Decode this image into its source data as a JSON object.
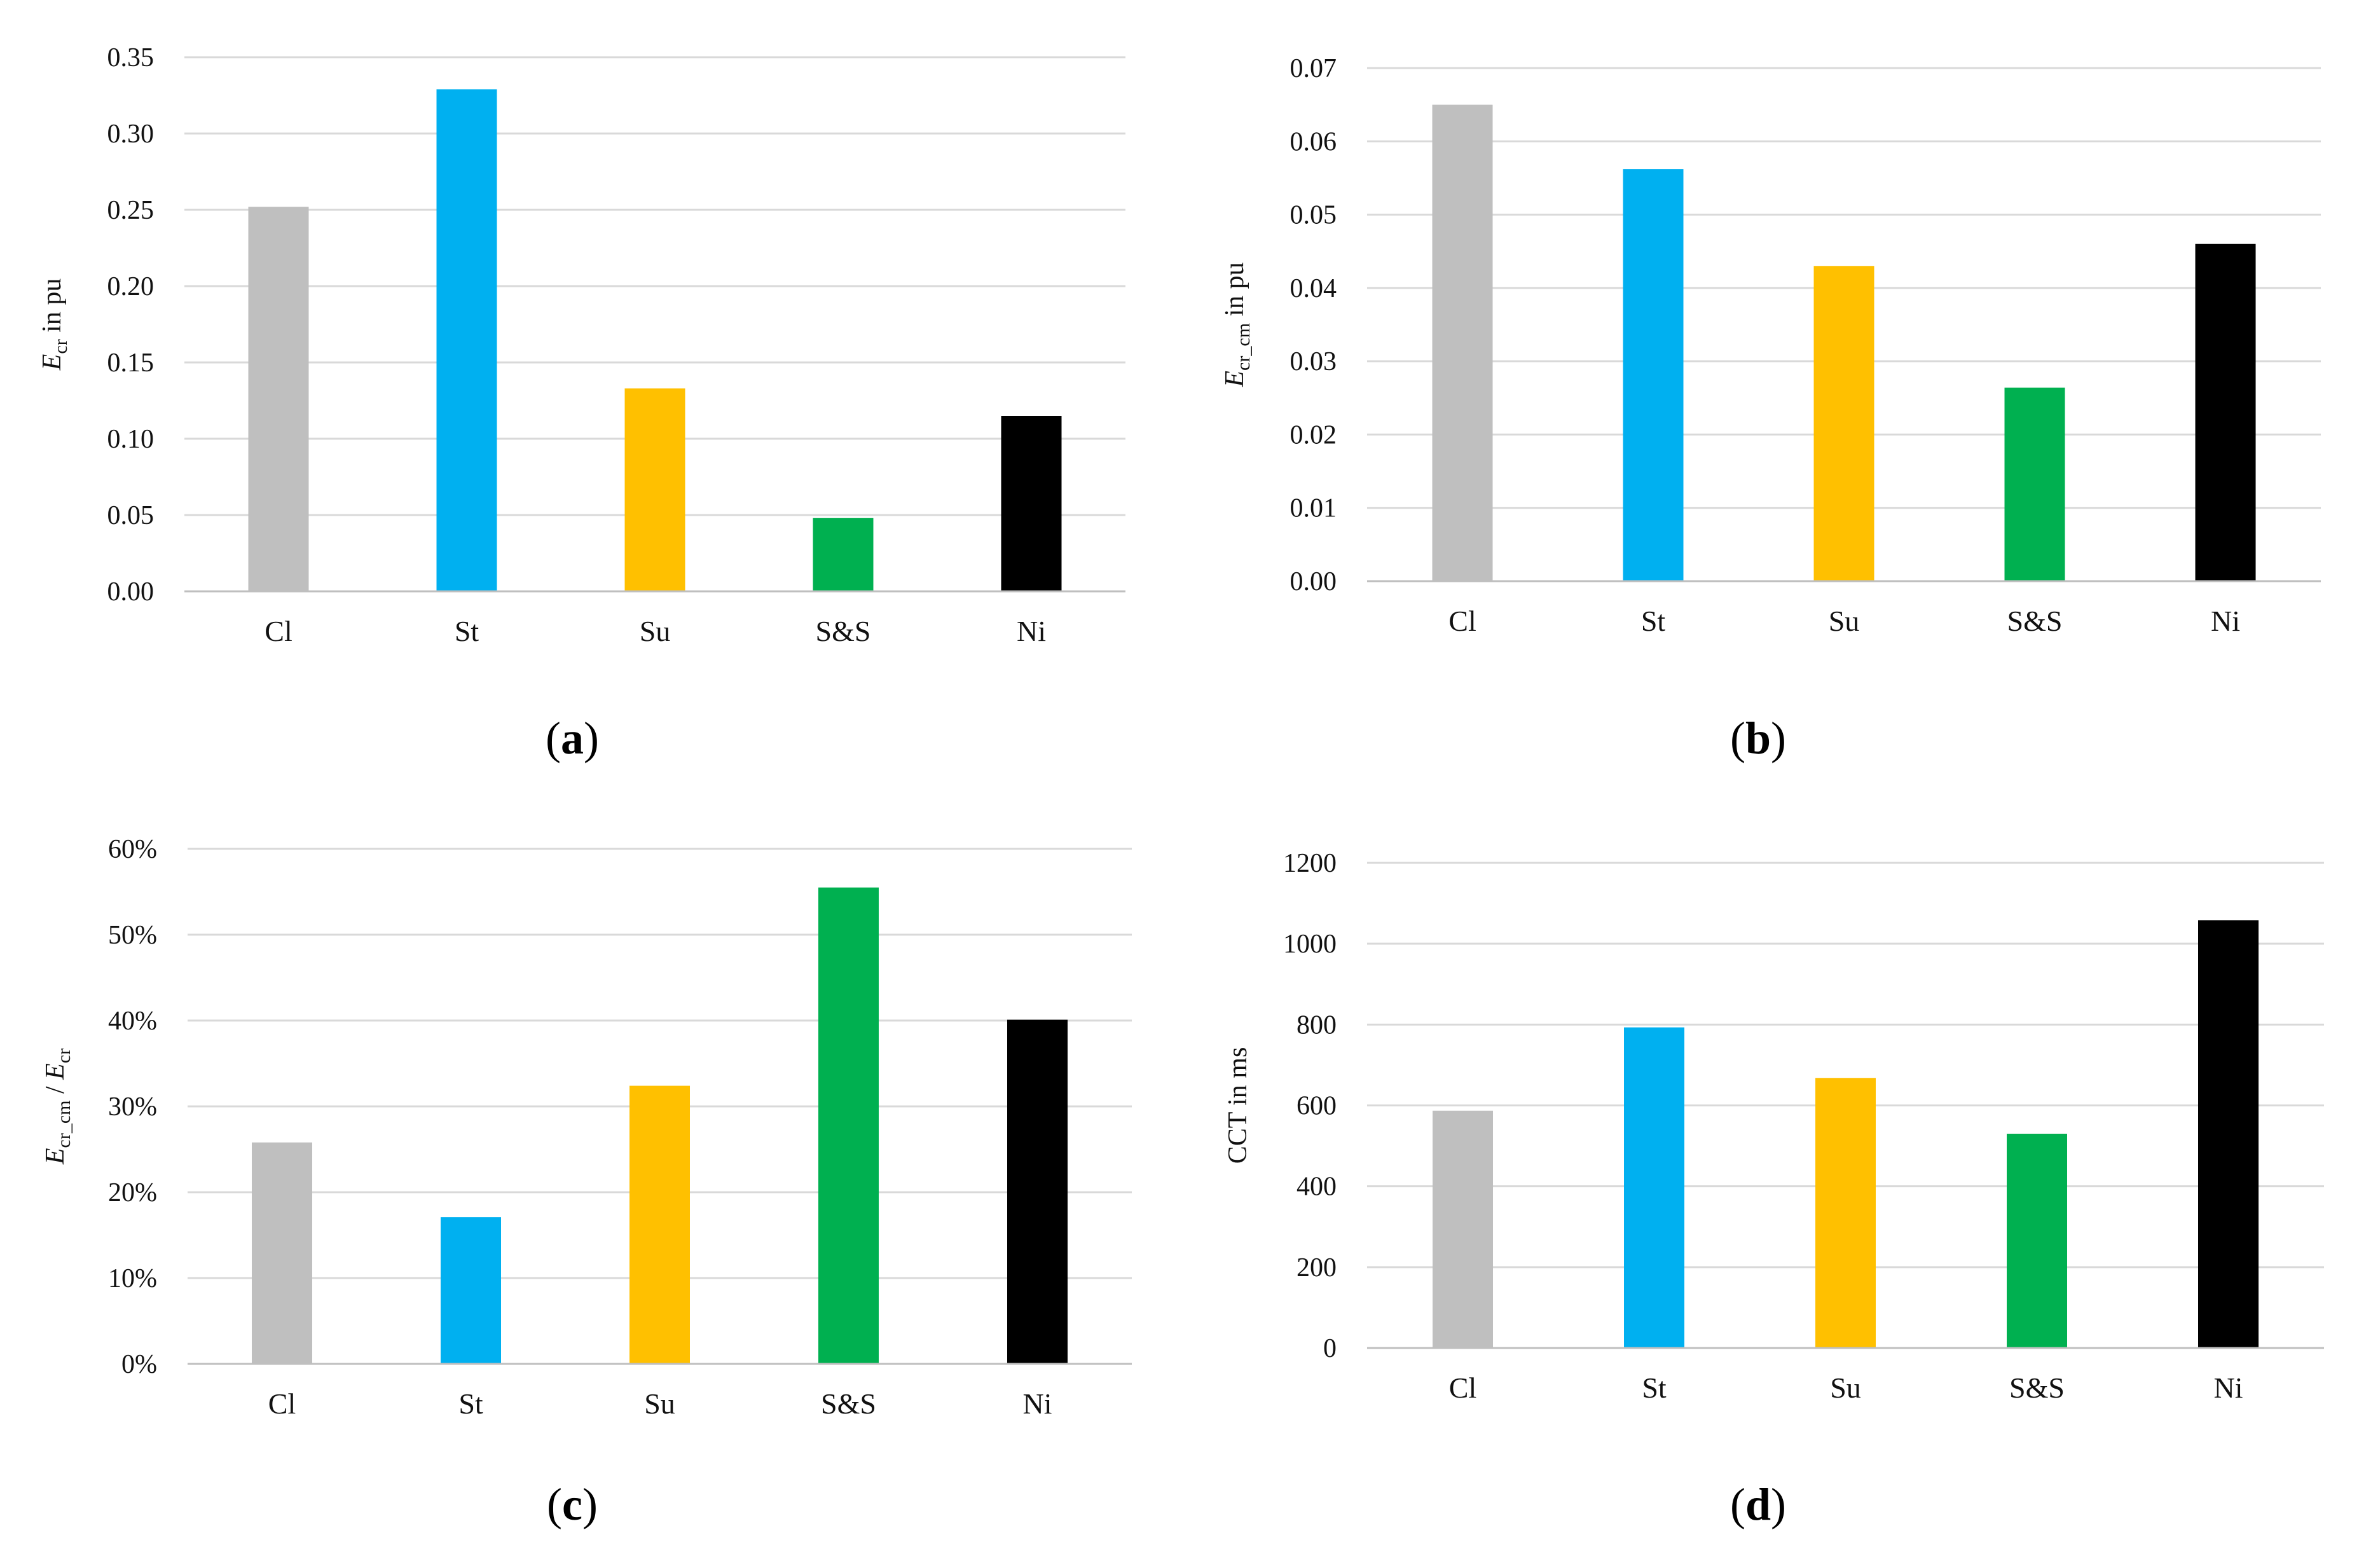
{
  "colors": {
    "Cl": "#bfbfbf",
    "St": "#00b0f0",
    "Su": "#ffc000",
    "S&S": "#00b050",
    "Ni": "#000000"
  },
  "chart_data": [
    {
      "type": "bar",
      "panel_label": "a",
      "categories": [
        "Cl",
        "St",
        "Su",
        "S&S",
        "Ni"
      ],
      "values": [
        0.252,
        0.329,
        0.133,
        0.048,
        0.115
      ],
      "ylabel": {
        "symbol": "E",
        "sub": "cr",
        "rest": " in pu"
      },
      "ylim": [
        0,
        0.35
      ],
      "yticks": [
        {
          "v": 0,
          "label": "0.00"
        },
        {
          "v": 0.05,
          "label": "0.05"
        },
        {
          "v": 0.1,
          "label": "0.10"
        },
        {
          "v": 0.15,
          "label": "0.15"
        },
        {
          "v": 0.2,
          "label": "0.20"
        },
        {
          "v": 0.25,
          "label": "0.25"
        },
        {
          "v": 0.3,
          "label": "0.30"
        },
        {
          "v": 0.35,
          "label": "0.35"
        }
      ],
      "grid": true,
      "legend": "none"
    },
    {
      "type": "bar",
      "panel_label": "b",
      "categories": [
        "Cl",
        "St",
        "Su",
        "S&S",
        "Ni"
      ],
      "values": [
        0.065,
        0.0562,
        0.043,
        0.0264,
        0.046
      ],
      "ylabel": {
        "symbol": "E",
        "sub": "cr_cm",
        "rest": " in pu"
      },
      "ylim": [
        0,
        0.07
      ],
      "yticks": [
        {
          "v": 0,
          "label": "0.00"
        },
        {
          "v": 0.01,
          "label": "0.01"
        },
        {
          "v": 0.02,
          "label": "0.02"
        },
        {
          "v": 0.03,
          "label": "0.03"
        },
        {
          "v": 0.04,
          "label": "0.04"
        },
        {
          "v": 0.05,
          "label": "0.05"
        },
        {
          "v": 0.06,
          "label": "0.06"
        },
        {
          "v": 0.07,
          "label": "0.07"
        }
      ],
      "grid": true,
      "legend": "none"
    },
    {
      "type": "bar",
      "panel_label": "c",
      "categories": [
        "Cl",
        "St",
        "Su",
        "S&S",
        "Ni"
      ],
      "values": [
        0.258,
        0.171,
        0.324,
        0.555,
        0.401
      ],
      "ylabel": {
        "symbol": "E",
        "sub": "cr_cm",
        "rest": " / ",
        "symbol2": "E",
        "sub2": "cr"
      },
      "ylim": [
        0,
        0.6
      ],
      "yticks": [
        {
          "v": 0,
          "label": "0%"
        },
        {
          "v": 0.1,
          "label": "10%"
        },
        {
          "v": 0.2,
          "label": "20%"
        },
        {
          "v": 0.3,
          "label": "30%"
        },
        {
          "v": 0.4,
          "label": "40%"
        },
        {
          "v": 0.5,
          "label": "50%"
        },
        {
          "v": 0.6,
          "label": "60%"
        }
      ],
      "grid": true,
      "legend": "none"
    },
    {
      "type": "bar",
      "panel_label": "d",
      "categories": [
        "Cl",
        "St",
        "Su",
        "S&S",
        "Ni"
      ],
      "values": [
        587,
        793,
        668,
        530,
        1058
      ],
      "ylabel": {
        "symbol": "",
        "sub": "",
        "rest": "CCT in ms"
      },
      "ylim": [
        0,
        1200
      ],
      "yticks": [
        {
          "v": 0,
          "label": "0"
        },
        {
          "v": 200,
          "label": "200"
        },
        {
          "v": 400,
          "label": "400"
        },
        {
          "v": 600,
          "label": "600"
        },
        {
          "v": 800,
          "label": "800"
        },
        {
          "v": 1000,
          "label": "1000"
        },
        {
          "v": 1200,
          "label": "1200"
        }
      ],
      "grid": true,
      "legend": "none"
    }
  ]
}
